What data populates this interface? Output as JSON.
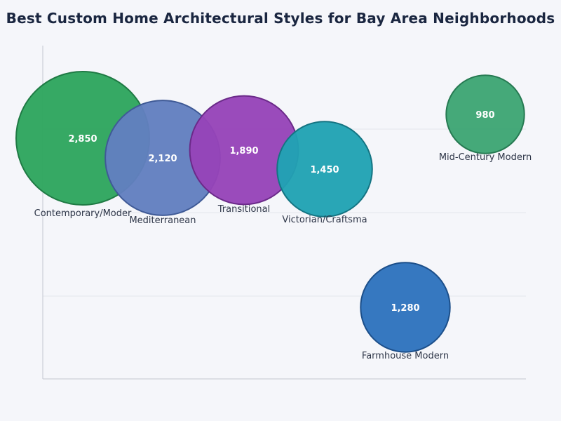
{
  "chart_data": {
    "type": "bubble",
    "title": "Best Custom Home Architectural Styles for Bay Area Neighborhoods",
    "xlabel": "",
    "ylabel": "",
    "grid": "horizontal",
    "legend": "none",
    "points": [
      {
        "label": "Contemporary/Moder",
        "value": 2850,
        "value_label": "2,850",
        "color": "#2ea55e",
        "stroke": "#1f7a44"
      },
      {
        "label": "Mediterranean",
        "value": 2120,
        "value_label": "2,120",
        "color": "#627fbf",
        "stroke": "#3f5a96"
      },
      {
        "label": "Transitional",
        "value": 1890,
        "value_label": "1,890",
        "color": "#9644b8",
        "stroke": "#6b2a89"
      },
      {
        "label": "Victorian/Craftsma",
        "value": 1450,
        "value_label": "1,450",
        "color": "#20a2b3",
        "stroke": "#147482"
      },
      {
        "label": "Farmhouse Modern",
        "value": 1280,
        "value_label": "1,280",
        "color": "#2e72bd",
        "stroke": "#1c4f8a"
      },
      {
        "label": "Mid-Century Modern",
        "value": 980,
        "value_label": "980",
        "color": "#3da674",
        "stroke": "#267a52"
      }
    ]
  }
}
